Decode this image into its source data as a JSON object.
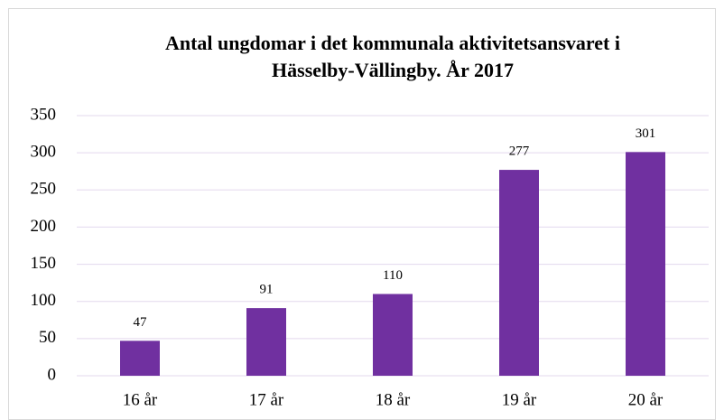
{
  "chart_data": {
    "type": "bar",
    "title": [
      "Antal ungdomar i det kommunala aktivitetsansvaret i",
      "Hässelby-Vällingby. År 2017"
    ],
    "categories": [
      "16 år",
      "17 år",
      "18 år",
      "19 år",
      "20 år"
    ],
    "values": [
      47,
      91,
      110,
      277,
      301
    ],
    "color": "#7030a0",
    "ylim": [
      0,
      350
    ],
    "yticks": [
      0,
      50,
      100,
      150,
      200,
      250,
      300,
      350
    ],
    "grid": true,
    "data_labels": true
  }
}
